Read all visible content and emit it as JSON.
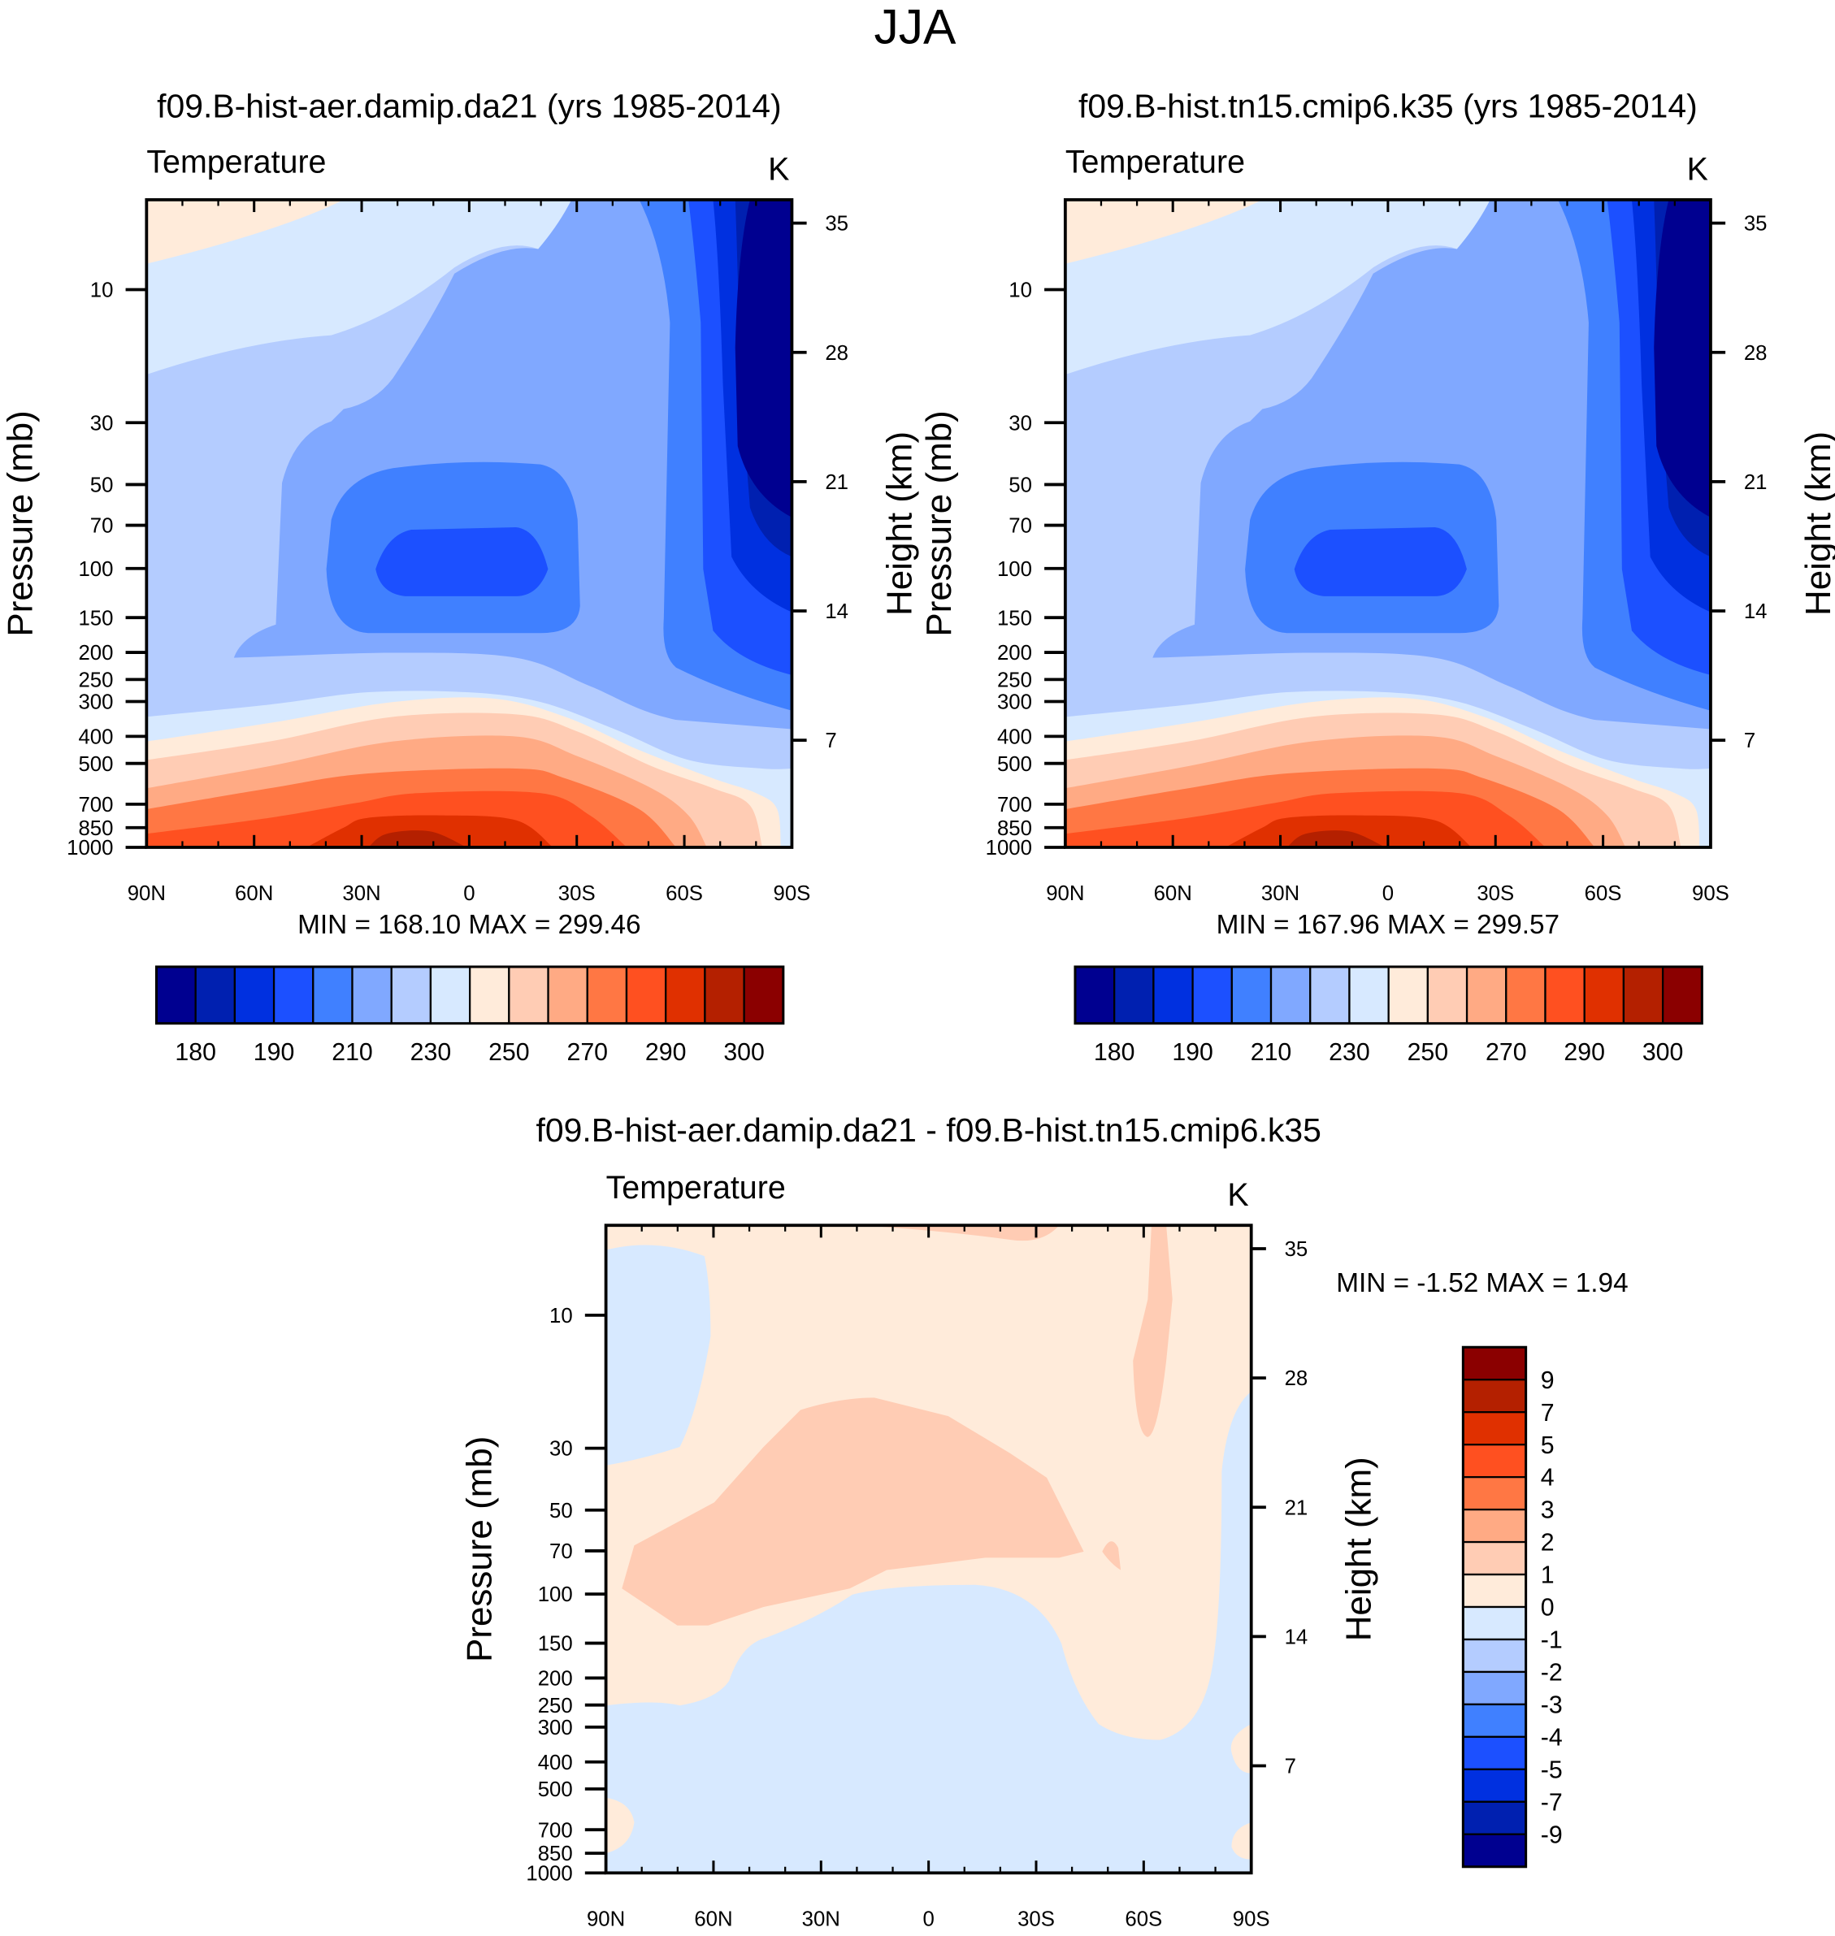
{
  "title": "JJA",
  "palette": [
    "#000090",
    "#0020B0",
    "#0030E0",
    "#1C50FF",
    "#4080FF",
    "#80A8FF",
    "#B4CCFF",
    "#D7E9FF",
    "#FFEBDA",
    "#FFCCB4",
    "#FFAA84",
    "#FF7744",
    "#FF5020",
    "#E03000",
    "#B42000",
    "#8B0000"
  ],
  "chart_data": [
    {
      "type": "contour",
      "title": "f09.B-hist-aer.damip.da21 (yrs 1985-2014)",
      "left_label": "Temperature",
      "right_label": "K",
      "xlabel": "",
      "ylabel": "Pressure (mb)",
      "ylabel_right": "Height (km)",
      "xticks": [
        "90N",
        "60N",
        "30N",
        "0",
        "30S",
        "60S",
        "90S"
      ],
      "xrange": [
        90,
        -90
      ],
      "yticks": [
        10,
        30,
        50,
        70,
        100,
        150,
        200,
        250,
        300,
        400,
        500,
        700,
        850,
        1000
      ],
      "yticks_right": [
        35,
        28,
        21,
        14,
        7
      ],
      "yrange_mb": [
        1000,
        4.8
      ],
      "stats": "MIN = 168.10  MAX = 299.46",
      "min": 168.1,
      "max": 299.46,
      "colorbar": {
        "orientation": "horizontal",
        "labels": [
          "180",
          "190",
          "210",
          "230",
          "250",
          "270",
          "290",
          "300"
        ]
      }
    },
    {
      "type": "contour",
      "title": "f09.B-hist.tn15.cmip6.k35 (yrs 1985-2014)",
      "left_label": "Temperature",
      "right_label": "K",
      "xlabel": "",
      "ylabel": "Pressure (mb)",
      "ylabel_right": "Height (km)",
      "xticks": [
        "90N",
        "60N",
        "30N",
        "0",
        "30S",
        "60S",
        "90S"
      ],
      "xrange": [
        90,
        -90
      ],
      "yticks": [
        10,
        30,
        50,
        70,
        100,
        150,
        200,
        250,
        300,
        400,
        500,
        700,
        850,
        1000
      ],
      "yticks_right": [
        35,
        28,
        21,
        14,
        7
      ],
      "yrange_mb": [
        1000,
        4.8
      ],
      "stats": "MIN = 167.96  MAX = 299.57",
      "min": 167.96,
      "max": 299.57,
      "colorbar": {
        "orientation": "horizontal",
        "labels": [
          "180",
          "190",
          "210",
          "230",
          "250",
          "270",
          "290",
          "300"
        ]
      }
    },
    {
      "type": "contour",
      "title": "f09.B-hist-aer.damip.da21 - f09.B-hist.tn15.cmip6.k35",
      "left_label": "Temperature",
      "right_label": "K",
      "xlabel": "",
      "ylabel": "Pressure (mb)",
      "ylabel_right": "Height (km)",
      "xticks": [
        "90N",
        "60N",
        "30N",
        "0",
        "30S",
        "60S",
        "90S"
      ],
      "xrange": [
        90,
        -90
      ],
      "yticks": [
        10,
        30,
        50,
        70,
        100,
        150,
        200,
        250,
        300,
        400,
        500,
        700,
        850,
        1000
      ],
      "yticks_right": [
        35,
        28,
        21,
        14,
        7
      ],
      "yrange_mb": [
        1000,
        4.8
      ],
      "stats": "MIN =  -1.52  MAX =   1.94",
      "min": -1.52,
      "max": 1.94,
      "colorbar": {
        "orientation": "vertical",
        "labels": [
          "9",
          "7",
          "5",
          "4",
          "3",
          "2",
          "1",
          "0",
          "-1",
          "-2",
          "-3",
          "-4",
          "-5",
          "-7",
          "-9"
        ]
      }
    }
  ]
}
